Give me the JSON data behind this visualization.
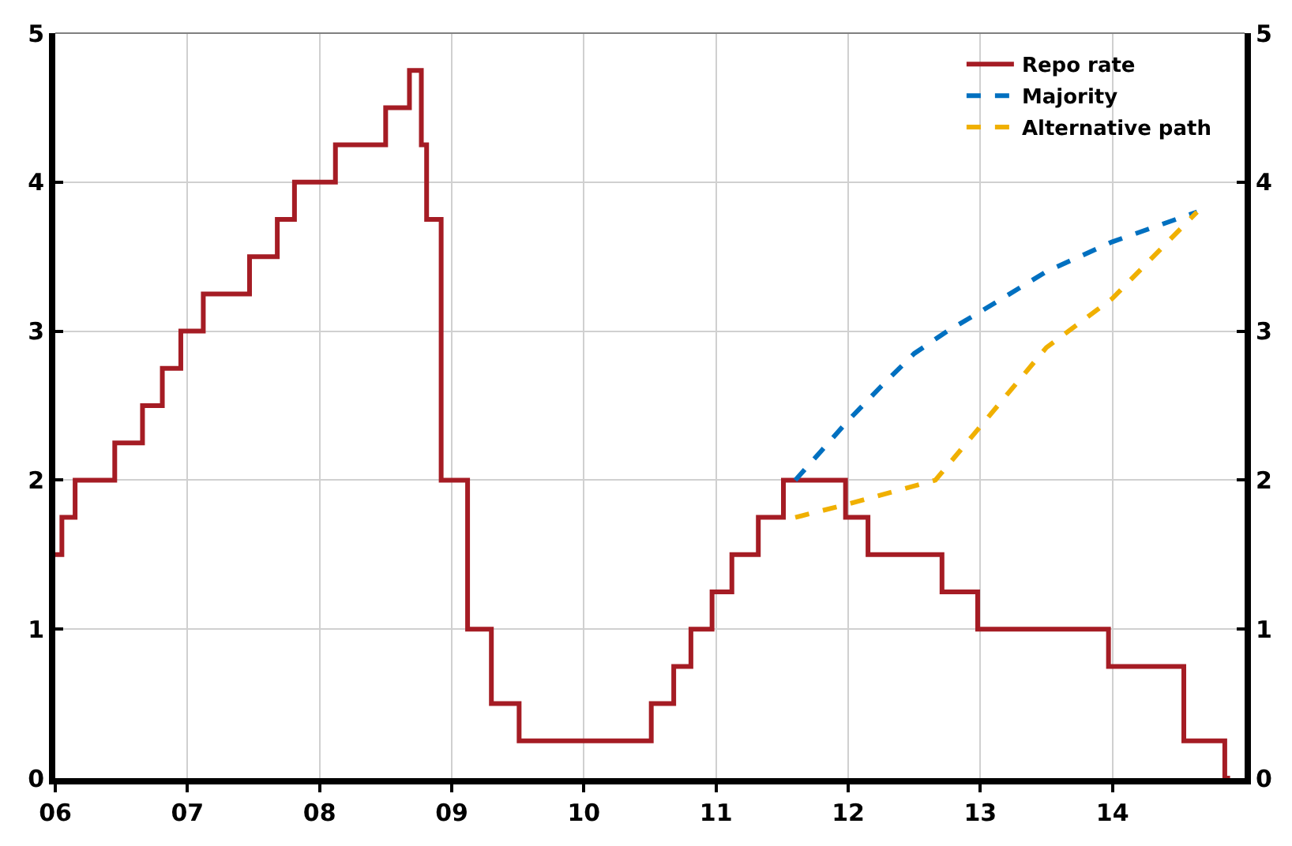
{
  "chart_data": {
    "type": "line",
    "xlim": [
      6,
      15
    ],
    "xticks": [
      {
        "value": 6,
        "label": "06"
      },
      {
        "value": 7,
        "label": "07"
      },
      {
        "value": 8,
        "label": "08"
      },
      {
        "value": 9,
        "label": "09"
      },
      {
        "value": 10,
        "label": "10"
      },
      {
        "value": 11,
        "label": "11"
      },
      {
        "value": 12,
        "label": "12"
      },
      {
        "value": 13,
        "label": "13"
      },
      {
        "value": 14,
        "label": "14"
      }
    ],
    "ylim": [
      0,
      5
    ],
    "yticks": [
      0,
      1,
      2,
      3,
      4,
      5
    ],
    "y2lim": [
      0,
      5
    ],
    "y2ticks": [
      0,
      1,
      2,
      3,
      4,
      5
    ],
    "grid": true,
    "legend": "top right",
    "marker": "none",
    "series": [
      {
        "name": "Repo rate",
        "type": "step",
        "color": "#a51c24",
        "line_style": "solid",
        "x": [
          6.0,
          6.05,
          6.15,
          6.45,
          6.66,
          6.81,
          6.95,
          7.12,
          7.47,
          7.68,
          7.81,
          8.12,
          8.5,
          8.68,
          8.77,
          8.81,
          8.92,
          9.12,
          9.3,
          9.51,
          10.51,
          10.68,
          10.81,
          10.97,
          11.12,
          11.32,
          11.51,
          11.98,
          12.15,
          12.71,
          12.98,
          13.97,
          14.54,
          14.85,
          14.89
        ],
        "values": [
          1.5,
          1.75,
          2.0,
          2.25,
          2.5,
          2.75,
          3.0,
          3.25,
          3.5,
          3.75,
          4.0,
          4.25,
          4.5,
          4.75,
          4.25,
          3.75,
          2.0,
          1.0,
          0.5,
          0.25,
          0.5,
          0.75,
          1.0,
          1.25,
          1.5,
          1.75,
          2.0,
          1.75,
          1.5,
          1.25,
          1.0,
          0.75,
          0.25,
          0.0,
          0.0
        ]
      },
      {
        "name": "Majority",
        "color": "#0070c0",
        "line_style": "dashed",
        "x": [
          11.6,
          11.8,
          12.0,
          12.25,
          12.5,
          12.75,
          13.0,
          13.5,
          14.0,
          14.64
        ],
        "values": [
          2.0,
          2.2,
          2.4,
          2.63,
          2.85,
          3.0,
          3.13,
          3.4,
          3.6,
          3.8
        ]
      },
      {
        "name": "Alternative path",
        "color": "#f0b000",
        "line_style": "dashed",
        "x": [
          11.6,
          12.0,
          12.66,
          13.0,
          13.5,
          14.0,
          14.64
        ],
        "values": [
          1.75,
          1.84,
          2.0,
          2.36,
          2.89,
          3.22,
          3.8
        ]
      }
    ]
  }
}
